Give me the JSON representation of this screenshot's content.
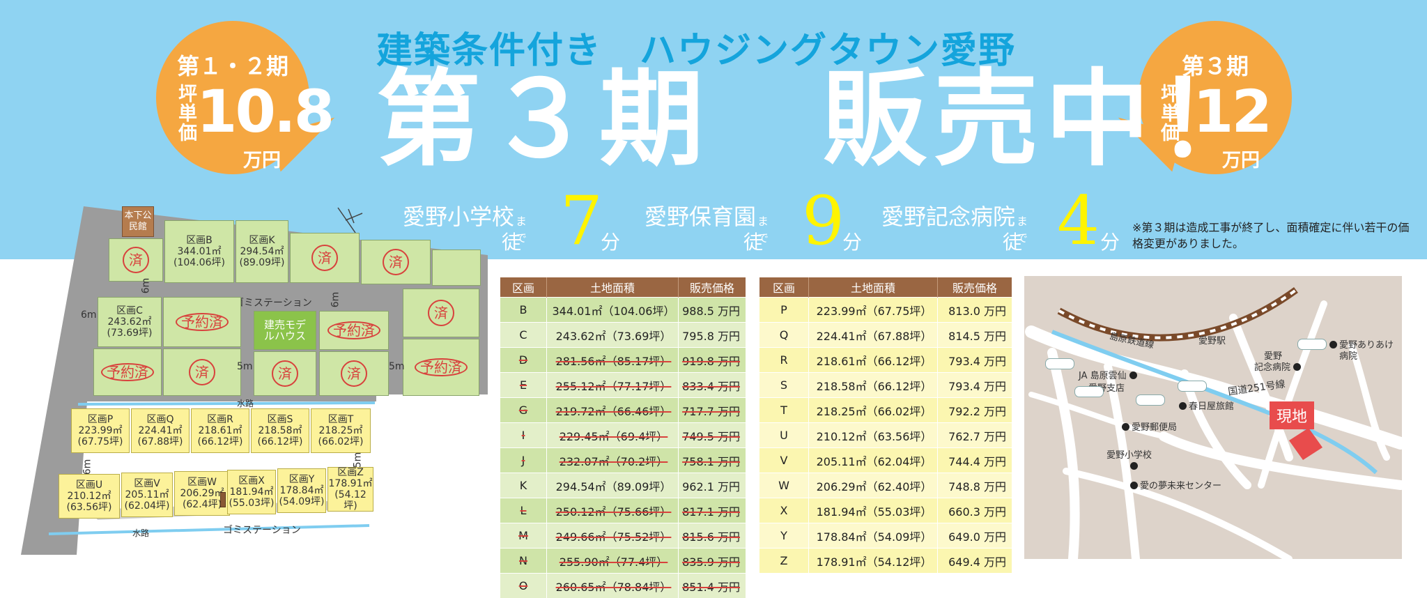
{
  "header": {
    "subtitle": "建築条件付き　ハウジングタウン愛野",
    "headline": "第３期　販売中！"
  },
  "bubble_left": {
    "period": "第１・２期",
    "label": "坪単価",
    "price": "10.8",
    "unit": "万円"
  },
  "bubble_right": {
    "period": "第３期",
    "label": "坪単価",
    "price": "12",
    "unit": "万円"
  },
  "distances": [
    {
      "name": "愛野小学校",
      "made": "まで",
      "walk": "徒歩",
      "minutes": "7",
      "fun": "分"
    },
    {
      "name": "愛野保育園",
      "made": "まで",
      "walk": "徒歩",
      "minutes": "9",
      "fun": "分"
    },
    {
      "name": "愛野記念病院",
      "made": "まで",
      "walk": "徒歩",
      "minutes": "4",
      "fun": "分"
    }
  ],
  "note": "※第３期は造成工事が終了し、面積確定に伴い若干の価格変更がありました。",
  "site_map": {
    "hall": "本下公民館",
    "sold": "済",
    "reserved": "予約済",
    "model_house": "建売モデルハウス",
    "garbage_top": "ゴミステーション",
    "garbage_bottom": "ゴミステーション",
    "waterway_top": "水路",
    "waterway_bottom": "水路",
    "road_6m": "6m",
    "road_5m": "5m",
    "lots": {
      "B": {
        "name": "区画B",
        "area": "344.01㎡",
        "tsubo": "(104.06坪)"
      },
      "K": {
        "name": "区画K",
        "area": "294.54㎡",
        "tsubo": "(89.09坪)"
      },
      "C": {
        "name": "区画C",
        "area": "243.62㎡",
        "tsubo": "(73.69坪)"
      },
      "P": {
        "name": "区画P",
        "area": "223.99㎡",
        "tsubo": "(67.75坪)"
      },
      "Q": {
        "name": "区画Q",
        "area": "224.41㎡",
        "tsubo": "(67.88坪)"
      },
      "R": {
        "name": "区画R",
        "area": "218.61㎡",
        "tsubo": "(66.12坪)"
      },
      "S": {
        "name": "区画S",
        "area": "218.58㎡",
        "tsubo": "(66.12坪)"
      },
      "T": {
        "name": "区画T",
        "area": "218.25㎡",
        "tsubo": "(66.02坪)"
      },
      "U": {
        "name": "区画U",
        "area": "210.12㎡",
        "tsubo": "(63.56坪)"
      },
      "V": {
        "name": "区画V",
        "area": "205.11㎡",
        "tsubo": "(62.04坪)"
      },
      "W": {
        "name": "区画W",
        "area": "206.29㎡",
        "tsubo": "(62.4坪)"
      },
      "X": {
        "name": "区画X",
        "area": "181.94㎡",
        "tsubo": "(55.03坪)"
      },
      "Y": {
        "name": "区画Y",
        "area": "178.84㎡",
        "tsubo": "(54.09坪)"
      },
      "Z": {
        "name": "区画Z",
        "area": "178.91㎡",
        "tsubo": "(54.12坪)"
      }
    }
  },
  "table_headers": {
    "lot": "区画",
    "area": "土地面積",
    "price": "販売価格"
  },
  "table_left": [
    {
      "lot": "B",
      "area": "344.01㎡（104.06坪）",
      "price": "988.5 万円",
      "sold": false
    },
    {
      "lot": "C",
      "area": "243.62㎡（73.69坪）",
      "price": "795.8 万円",
      "sold": false
    },
    {
      "lot": "D",
      "area": "281.56㎡（85.17坪）",
      "price": "919.8 万円",
      "sold": true
    },
    {
      "lot": "E",
      "area": "255.12㎡（77.17坪）",
      "price": "833.4 万円",
      "sold": true
    },
    {
      "lot": "G",
      "area": "219.72㎡（66.46坪）",
      "price": "717.7 万円",
      "sold": true
    },
    {
      "lot": "I",
      "area": "229.45㎡（69.4坪）",
      "price": "749.5 万円",
      "sold": true
    },
    {
      "lot": "J",
      "area": "232.07㎡（70.2坪）",
      "price": "758.1 万円",
      "sold": true
    },
    {
      "lot": "K",
      "area": "294.54㎡（89.09坪）",
      "price": "962.1 万円",
      "sold": false
    },
    {
      "lot": "L",
      "area": "250.12㎡（75.66坪）",
      "price": "817.1 万円",
      "sold": true
    },
    {
      "lot": "M",
      "area": "249.66㎡（75.52坪）",
      "price": "815.6 万円",
      "sold": true
    },
    {
      "lot": "N",
      "area": "255.90㎡（77.4坪）",
      "price": "835.9 万円",
      "sold": true
    },
    {
      "lot": "O",
      "area": "260.65㎡（78.84坪）",
      "price": "851.4 万円",
      "sold": true
    }
  ],
  "table_right": [
    {
      "lot": "P",
      "area": "223.99㎡（67.75坪）",
      "price": "813.0 万円"
    },
    {
      "lot": "Q",
      "area": "224.41㎡（67.88坪）",
      "price": "814.5 万円"
    },
    {
      "lot": "R",
      "area": "218.61㎡（66.12坪）",
      "price": "793.4 万円"
    },
    {
      "lot": "S",
      "area": "218.58㎡（66.12坪）",
      "price": "793.4 万円"
    },
    {
      "lot": "T",
      "area": "218.25㎡（66.02坪）",
      "price": "792.2 万円"
    },
    {
      "lot": "U",
      "area": "210.12㎡（63.56坪）",
      "price": "762.7 万円"
    },
    {
      "lot": "V",
      "area": "205.11㎡（62.04坪）",
      "price": "744.4 万円"
    },
    {
      "lot": "W",
      "area": "206.29㎡（62.40坪）",
      "price": "748.8 万円"
    },
    {
      "lot": "X",
      "area": "181.94㎡（55.03坪）",
      "price": "660.3 万円"
    },
    {
      "lot": "Y",
      "area": "178.84㎡（54.09坪）",
      "price": "649.0 万円"
    },
    {
      "lot": "Z",
      "area": "178.91㎡（54.12坪）",
      "price": "649.4 万円"
    }
  ],
  "access_map": {
    "railway": "島原鉄道線",
    "station": "愛野駅",
    "ja": "JA 島原雲仙",
    "ja2": "愛野支店",
    "hospital": "愛野",
    "hospital2": "記念病院",
    "ariake": "愛野ありあけ",
    "ariake2": "病院",
    "route": "国道251号線",
    "kasugaya": "春日屋旅館",
    "post": "愛野郵便局",
    "school": "愛野小学校",
    "center": "愛の夢未来センター",
    "site": "現地"
  }
}
